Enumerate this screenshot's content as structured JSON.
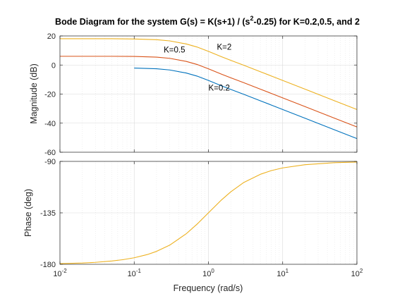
{
  "chart_data": {
    "type": "line",
    "title": {
      "prefix": "Bode Diagram for the system G(s) = K(s+1) / (s",
      "superscript": "2",
      "suffix": "-0.25) for K=0.2,0.5, and 2"
    },
    "xlabel": "Frequency  (rad/s)",
    "xscale": "log",
    "xlim": [
      0.01,
      100
    ],
    "x_tick_labels": [
      {
        "base": "10",
        "exp": "-2"
      },
      {
        "base": "10",
        "exp": "-1"
      },
      {
        "base": "10",
        "exp": "0"
      },
      {
        "base": "10",
        "exp": "1"
      },
      {
        "base": "10",
        "exp": "2"
      }
    ],
    "grid": true,
    "magnitude": {
      "ylabel": "Magnitude (dB)",
      "ylim": [
        -60,
        20
      ],
      "yticks": [
        20,
        0,
        -20,
        -40,
        -60
      ],
      "ytick_labels": [
        "20",
        "0",
        "-20",
        "-40",
        "-60"
      ],
      "series": [
        {
          "name": "K=0.2",
          "color": "#0072BD",
          "x": [
            0.1,
            0.2,
            0.3,
            0.5,
            0.7,
            1,
            1.5,
            2,
            3,
            5,
            7,
            10,
            20,
            50,
            100
          ],
          "y": [
            -2.1,
            -2.6,
            -3.4,
            -5.5,
            -7.6,
            -10.6,
            -14.3,
            -16.8,
            -20.2,
            -24.6,
            -27.5,
            -30.6,
            -36.6,
            -44.6,
            -50.6
          ]
        },
        {
          "name": "K=0.5",
          "color": "#D95319",
          "x": [
            0.01,
            0.03,
            0.05,
            0.1,
            0.2,
            0.3,
            0.5,
            0.7,
            1,
            1.5,
            2,
            3,
            5,
            7,
            10,
            20,
            50,
            100
          ],
          "y": [
            6.0,
            6.0,
            6.0,
            5.9,
            5.4,
            4.6,
            2.5,
            0.4,
            -2.6,
            -6.3,
            -8.8,
            -12.2,
            -16.6,
            -19.5,
            -22.6,
            -28.6,
            -36.6,
            -42.6
          ]
        },
        {
          "name": "K=2",
          "color": "#EDB120",
          "x": [
            0.01,
            0.03,
            0.05,
            0.1,
            0.2,
            0.3,
            0.5,
            0.7,
            1,
            1.5,
            2,
            3,
            5,
            7,
            10,
            20,
            50,
            100
          ],
          "y": [
            18.1,
            18.1,
            18.1,
            17.9,
            17.4,
            16.6,
            14.5,
            12.4,
            9.4,
            5.7,
            3.2,
            -0.2,
            -4.6,
            -7.5,
            -10.6,
            -16.6,
            -24.6,
            -30.6
          ]
        }
      ],
      "annotations": [
        {
          "text": "K=0.5",
          "x": 0.25,
          "y": 8.5
        },
        {
          "text": "K=2",
          "x": 1.3,
          "y": 10.5
        },
        {
          "text": "K=0.2",
          "x": 1.0,
          "y": -17.5
        }
      ]
    },
    "phase": {
      "ylabel": "Phase (deg)",
      "ylim": [
        -180,
        -90
      ],
      "yticks": [
        -90,
        -135,
        -180
      ],
      "ytick_labels": [
        "-90",
        "-135",
        "-180"
      ],
      "series": [
        {
          "name": "Phase",
          "color": "#EDB120",
          "x": [
            0.01,
            0.02,
            0.03,
            0.05,
            0.07,
            0.1,
            0.15,
            0.2,
            0.3,
            0.5,
            0.7,
            1,
            1.5,
            2,
            3,
            5,
            7,
            10,
            20,
            50,
            100
          ],
          "y": [
            -179.4,
            -178.9,
            -178.3,
            -177.1,
            -176.0,
            -174.3,
            -171.5,
            -168.7,
            -163.3,
            -153.4,
            -145.0,
            -135.0,
            -123.7,
            -116.6,
            -108.4,
            -101.3,
            -98.1,
            -95.7,
            -92.9,
            -91.1,
            -90.6
          ]
        }
      ]
    }
  }
}
